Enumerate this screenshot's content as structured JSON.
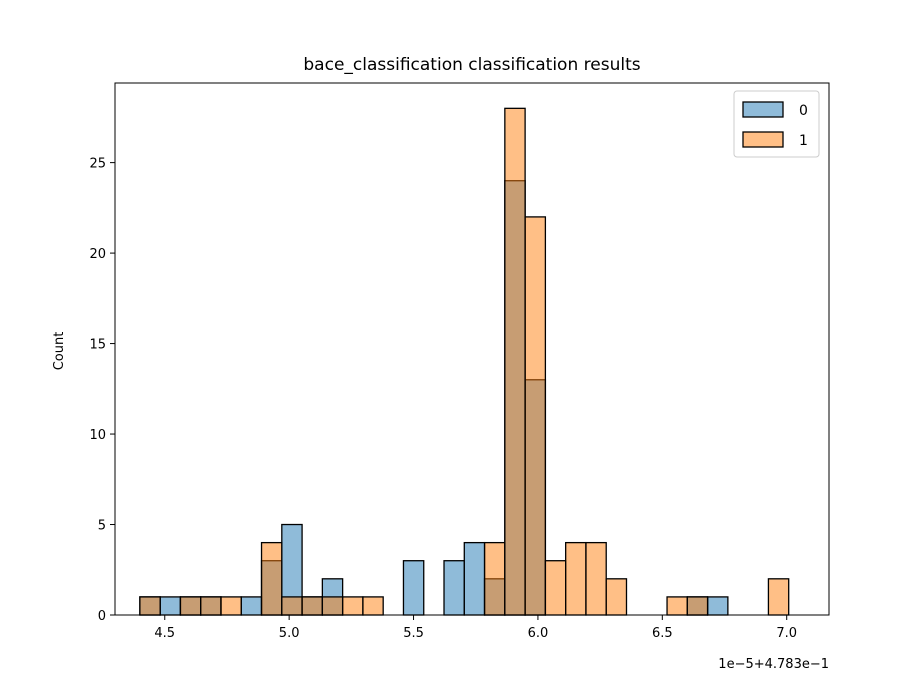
{
  "chart_data": {
    "type": "bar",
    "title": "bace_classification classification results",
    "xlabel": "",
    "ylabel": "Count",
    "x_offset_label": "1e−5+4.783e−1",
    "xlim": [
      4.3,
      7.17
    ],
    "ylim": [
      0,
      29.4
    ],
    "xticks": [
      4.5,
      5.0,
      5.5,
      6.0,
      6.5,
      7.0
    ],
    "xtick_labels": [
      "4.5",
      "5.0",
      "5.5",
      "6.0",
      "6.5",
      "7.0"
    ],
    "yticks": [
      0,
      5,
      10,
      15,
      20,
      25
    ],
    "ytick_labels": [
      "0",
      "5",
      "10",
      "15",
      "20",
      "25"
    ],
    "bin_start": 4.4,
    "bin_width": 0.0815,
    "bin_count": 32,
    "grid": false,
    "legend_position": "top-right",
    "series": [
      {
        "name": "0",
        "color": "#1f77b4",
        "values": [
          1,
          1,
          1,
          1,
          0,
          1,
          3,
          5,
          1,
          2,
          0,
          0,
          0,
          3,
          0,
          3,
          4,
          2,
          24,
          13,
          0,
          0,
          0,
          0,
          0,
          0,
          0,
          1,
          1,
          0,
          0,
          0
        ]
      },
      {
        "name": "1",
        "color": "#ff7f0e",
        "values": [
          1,
          0,
          1,
          1,
          1,
          0,
          4,
          1,
          1,
          1,
          1,
          1,
          0,
          0,
          0,
          0,
          0,
          4,
          28,
          22,
          3,
          4,
          4,
          2,
          0,
          0,
          1,
          1,
          0,
          0,
          0,
          2
        ]
      }
    ]
  }
}
